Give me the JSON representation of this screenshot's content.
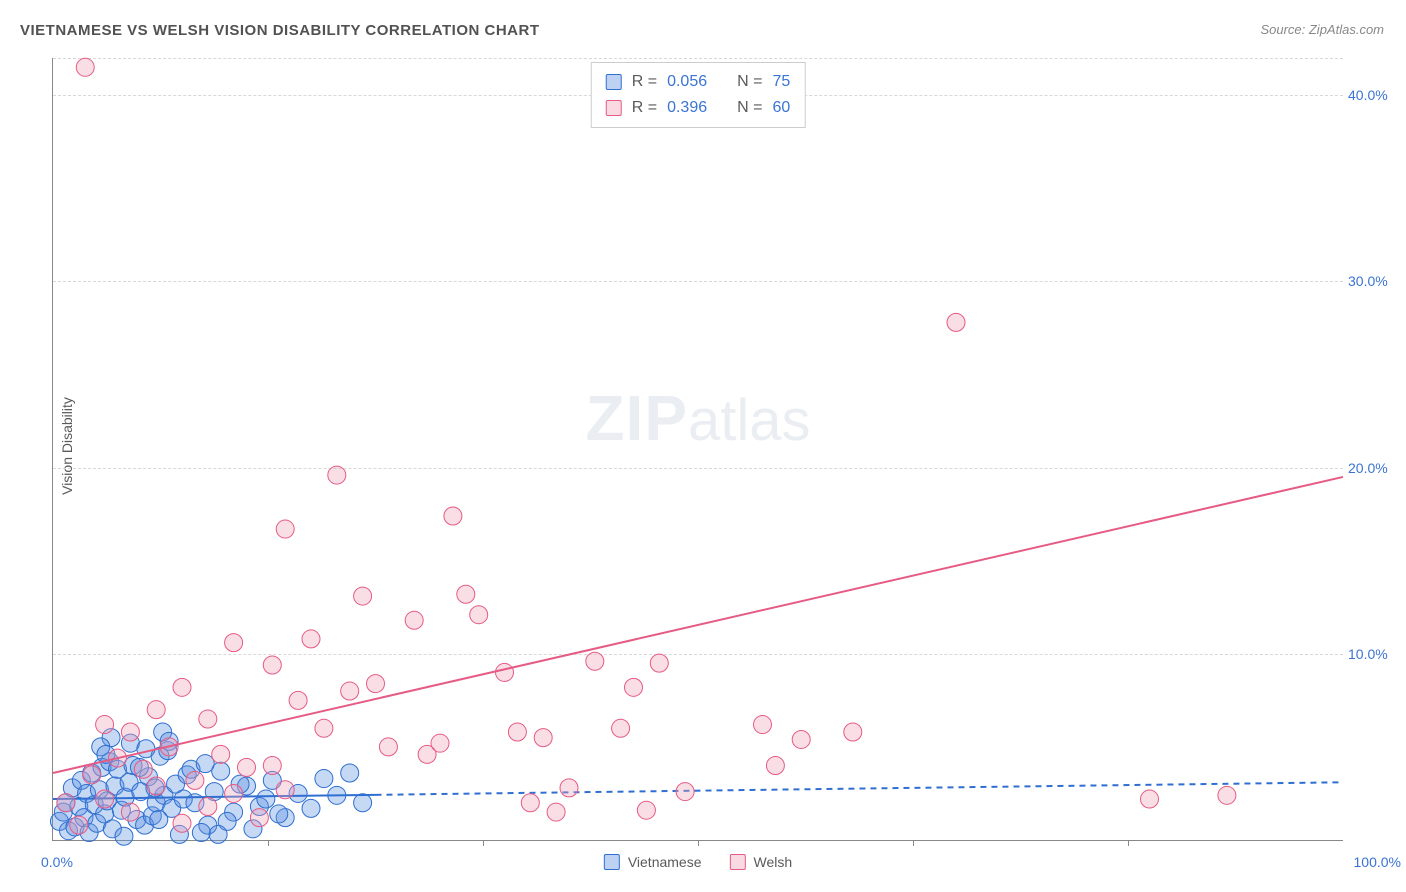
{
  "title": "VIETNAMESE VS WELSH VISION DISABILITY CORRELATION CHART",
  "source": "Source: ZipAtlas.com",
  "ylabel": "Vision Disability",
  "watermark_zip": "ZIP",
  "watermark_atlas": "atlas",
  "chart": {
    "type": "scatter",
    "background_color": "#ffffff",
    "grid_color": "#d8d8d8",
    "axis_color": "#888888",
    "xlim": [
      0,
      100
    ],
    "ylim": [
      0,
      42
    ],
    "ytick_step": 10,
    "ytick_labels": [
      "10.0%",
      "20.0%",
      "30.0%",
      "40.0%"
    ],
    "xtick_positions": [
      16.7,
      33.3,
      50.0,
      66.7,
      83.3
    ],
    "x_origin_label": "0.0%",
    "x_max_label": "100.0%",
    "tick_label_color": "#3b74d4",
    "marker_radius": 9,
    "marker_opacity": 0.35,
    "line_width": 2,
    "series": [
      {
        "name": "Vietnamese",
        "fill_color": "#5a8fe0",
        "stroke_color": "#2f6fd1",
        "R": "0.056",
        "N": "75",
        "trend": {
          "x1": 0,
          "y1": 2.2,
          "x2": 25,
          "y2": 2.4,
          "solid_until_x": 25,
          "x3": 100,
          "y3": 3.1
        },
        "points": [
          [
            0.5,
            1.0
          ],
          [
            0.8,
            1.5
          ],
          [
            1.0,
            2.0
          ],
          [
            1.2,
            0.5
          ],
          [
            1.5,
            2.8
          ],
          [
            1.7,
            0.7
          ],
          [
            2.0,
            1.8
          ],
          [
            2.2,
            3.2
          ],
          [
            2.4,
            1.2
          ],
          [
            2.6,
            2.5
          ],
          [
            2.8,
            0.4
          ],
          [
            3.0,
            3.6
          ],
          [
            3.2,
            1.9
          ],
          [
            3.4,
            0.9
          ],
          [
            3.6,
            2.7
          ],
          [
            3.8,
            3.9
          ],
          [
            4.0,
            1.4
          ],
          [
            4.2,
            2.1
          ],
          [
            4.4,
            4.2
          ],
          [
            4.6,
            0.6
          ],
          [
            4.8,
            2.9
          ],
          [
            5.0,
            3.8
          ],
          [
            5.3,
            1.6
          ],
          [
            5.6,
            2.3
          ],
          [
            5.9,
            3.1
          ],
          [
            6.2,
            4.0
          ],
          [
            6.5,
            1.1
          ],
          [
            6.8,
            2.6
          ],
          [
            7.1,
            0.8
          ],
          [
            7.4,
            3.4
          ],
          [
            7.7,
            1.3
          ],
          [
            8.0,
            2.0
          ],
          [
            8.3,
            4.5
          ],
          [
            8.6,
            2.4
          ],
          [
            8.9,
            4.8
          ],
          [
            9.2,
            1.7
          ],
          [
            9.5,
            3.0
          ],
          [
            9.8,
            0.3
          ],
          [
            10.1,
            2.2
          ],
          [
            10.4,
            3.5
          ],
          [
            6.0,
            5.2
          ],
          [
            4.5,
            5.5
          ],
          [
            7.2,
            4.9
          ],
          [
            3.7,
            5.0
          ],
          [
            8.5,
            5.8
          ],
          [
            11.0,
            2.0
          ],
          [
            12.0,
            0.8
          ],
          [
            13.0,
            3.7
          ],
          [
            14.0,
            1.5
          ],
          [
            15.0,
            2.9
          ],
          [
            16.0,
            1.8
          ],
          [
            17.0,
            3.2
          ],
          [
            18.0,
            1.2
          ],
          [
            11.5,
            0.4
          ],
          [
            12.5,
            2.6
          ],
          [
            13.5,
            1.0
          ],
          [
            14.5,
            3.0
          ],
          [
            15.5,
            0.6
          ],
          [
            16.5,
            2.2
          ],
          [
            17.5,
            1.4
          ],
          [
            19.0,
            2.5
          ],
          [
            20.0,
            1.7
          ],
          [
            21.0,
            3.3
          ],
          [
            22.0,
            2.4
          ],
          [
            23.0,
            3.6
          ],
          [
            24.0,
            2.0
          ],
          [
            10.7,
            3.8
          ],
          [
            11.8,
            4.1
          ],
          [
            12.8,
            0.3
          ],
          [
            9.0,
            5.3
          ],
          [
            5.5,
            0.2
          ],
          [
            6.7,
            3.9
          ],
          [
            7.9,
            2.8
          ],
          [
            8.2,
            1.1
          ],
          [
            4.1,
            4.6
          ]
        ]
      },
      {
        "name": "Welsh",
        "fill_color": "#f0a0b6",
        "stroke_color": "#e65b84",
        "R": "0.396",
        "N": "60",
        "trend": {
          "x1": 0,
          "y1": 3.6,
          "x2": 100,
          "y2": 19.5,
          "solid_until_x": 100
        },
        "points": [
          [
            1,
            2.0
          ],
          [
            2,
            0.8
          ],
          [
            3,
            3.5
          ],
          [
            4,
            2.2
          ],
          [
            5,
            4.4
          ],
          [
            6,
            1.5
          ],
          [
            7,
            3.8
          ],
          [
            8,
            2.9
          ],
          [
            9,
            5.0
          ],
          [
            10,
            0.9
          ],
          [
            11,
            3.2
          ],
          [
            12,
            1.8
          ],
          [
            13,
            4.6
          ],
          [
            14,
            2.5
          ],
          [
            15,
            3.9
          ],
          [
            16,
            1.2
          ],
          [
            17,
            4.0
          ],
          [
            18,
            2.7
          ],
          [
            2.5,
            41.5
          ],
          [
            14,
            10.6
          ],
          [
            17,
            9.4
          ],
          [
            18,
            16.7
          ],
          [
            20,
            10.8
          ],
          [
            22,
            19.6
          ],
          [
            24,
            13.1
          ],
          [
            25,
            8.4
          ],
          [
            26,
            5.0
          ],
          [
            28,
            11.8
          ],
          [
            29,
            4.6
          ],
          [
            30,
            5.2
          ],
          [
            31,
            17.4
          ],
          [
            32,
            13.2
          ],
          [
            33,
            12.1
          ],
          [
            35,
            9.0
          ],
          [
            36,
            5.8
          ],
          [
            37,
            2.0
          ],
          [
            38,
            5.5
          ],
          [
            39,
            1.5
          ],
          [
            40,
            2.8
          ],
          [
            42,
            9.6
          ],
          [
            44,
            6.0
          ],
          [
            45,
            8.2
          ],
          [
            46,
            1.6
          ],
          [
            47,
            9.5
          ],
          [
            49,
            2.6
          ],
          [
            55,
            6.2
          ],
          [
            56,
            4.0
          ],
          [
            58,
            5.4
          ],
          [
            62,
            5.8
          ],
          [
            70,
            27.8
          ],
          [
            85,
            2.2
          ],
          [
            91,
            2.4
          ],
          [
            8,
            7.0
          ],
          [
            10,
            8.2
          ],
          [
            12,
            6.5
          ],
          [
            6,
            5.8
          ],
          [
            4,
            6.2
          ],
          [
            19,
            7.5
          ],
          [
            21,
            6.0
          ],
          [
            23,
            8.0
          ]
        ]
      }
    ]
  },
  "bottom_legend": [
    {
      "label": "Vietnamese",
      "fill": "#5a8fe0",
      "stroke": "#2f6fd1"
    },
    {
      "label": "Welsh",
      "fill": "#f0a0b6",
      "stroke": "#e65b84"
    }
  ],
  "stats_labels": {
    "R": "R =",
    "N": "N ="
  }
}
